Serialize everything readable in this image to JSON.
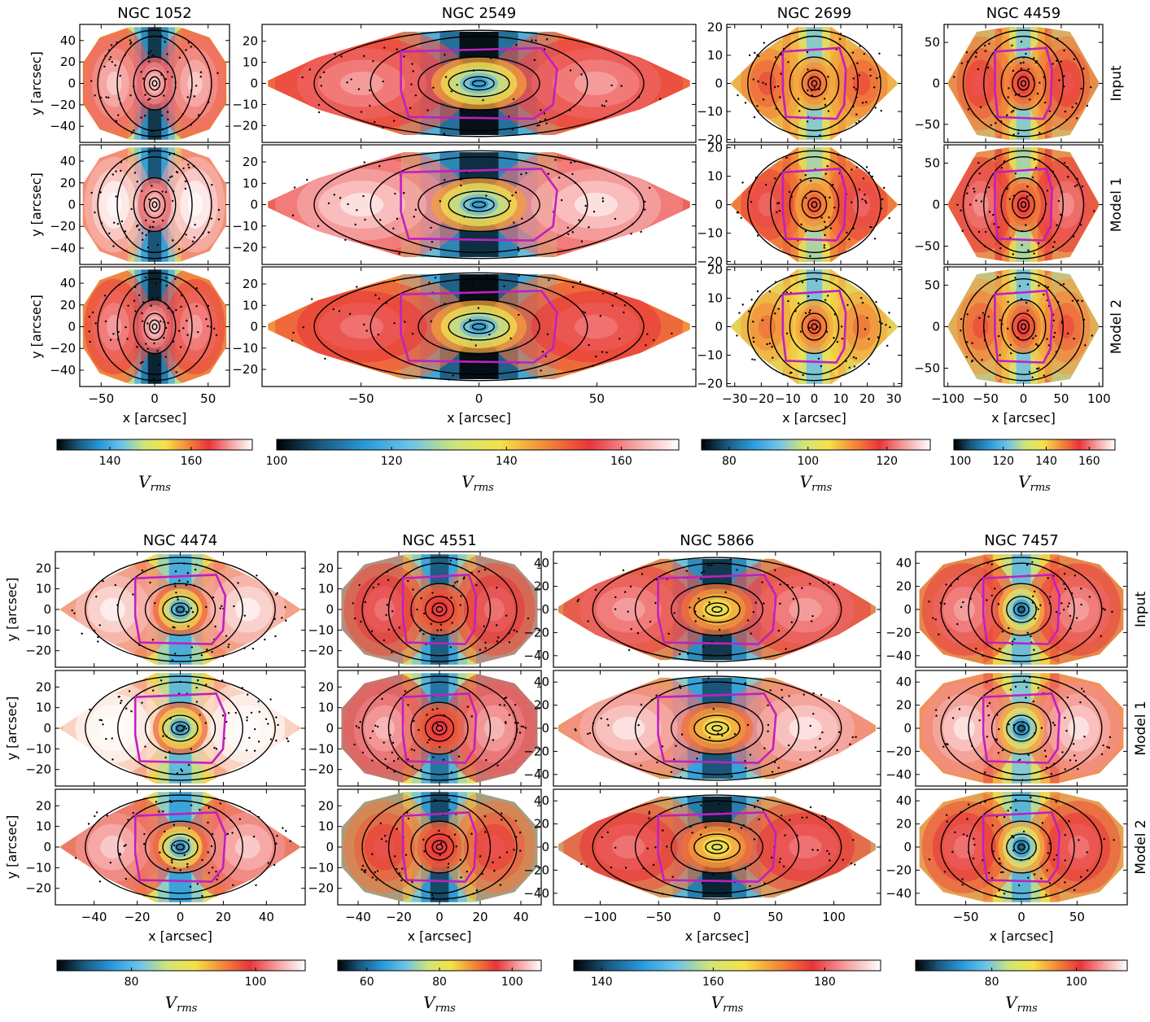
{
  "colors": {
    "contour": "#000000",
    "aperture": "#c020c0",
    "bin_dot": "#000000",
    "colormap": [
      "#000000",
      "#1a5a80",
      "#2a9adb",
      "#6fc3e8",
      "#cfe57a",
      "#f5e24a",
      "#f38a3a",
      "#e8353a",
      "#f5a0a0",
      "#ffffff"
    ]
  },
  "chart_data": [
    {
      "type": "heatmap",
      "galaxy": "NGC 1052",
      "title": "NGC 1052",
      "xlabel": "x [arcsec]",
      "ylabel": "y [arcsec]",
      "xlim": [
        -70,
        70
      ],
      "ylim": [
        -55,
        55
      ],
      "xticks": [
        -50,
        0,
        50
      ],
      "yticks": [
        40,
        20,
        0,
        -20,
        -40
      ],
      "rows": [
        "Input",
        "Model 1",
        "Model 2"
      ],
      "colorbar": {
        "label": "V_rms",
        "range": [
          127,
          175
        ],
        "ticks": [
          140,
          160
        ]
      },
      "aperture": false
    },
    {
      "type": "heatmap",
      "galaxy": "NGC 2549",
      "title": "NGC 2549",
      "xlabel": "x [arcsec]",
      "ylabel": "",
      "xlim": [
        -92,
        92
      ],
      "ylim": [
        -28,
        28
      ],
      "xticks": [
        -50,
        0,
        50
      ],
      "yticks": [
        20,
        10,
        0,
        -10,
        -20
      ],
      "rows": [
        "Input",
        "Model 1",
        "Model 2"
      ],
      "colorbar": {
        "label": "V_rms",
        "range": [
          100,
          170
        ],
        "ticks": [
          100,
          120,
          140,
          160
        ]
      },
      "aperture": true
    },
    {
      "type": "heatmap",
      "galaxy": "NGC 2699",
      "title": "NGC 2699",
      "xlabel": "x [arcsec]",
      "ylabel": "",
      "xlim": [
        -33,
        33
      ],
      "ylim": [
        -21,
        21
      ],
      "xticks": [
        -30,
        -20,
        -10,
        0,
        10,
        20,
        30
      ],
      "yticks": [
        20,
        10,
        0,
        -10,
        -20
      ],
      "rows": [
        "Input",
        "Model 1",
        "Model 2"
      ],
      "colorbar": {
        "label": "V_rms",
        "range": [
          73,
          131
        ],
        "ticks": [
          80,
          100,
          120
        ]
      },
      "aperture": true
    },
    {
      "type": "heatmap",
      "galaxy": "NGC 4459",
      "title": "NGC 4459",
      "xlabel": "x [arcsec]",
      "ylabel": "",
      "xlim": [
        -105,
        105
      ],
      "ylim": [
        -72,
        72
      ],
      "xticks": [
        -100,
        -50,
        0,
        50,
        100
      ],
      "yticks": [
        50,
        0,
        -50
      ],
      "rows": [
        "Input",
        "Model 1",
        "Model 2"
      ],
      "colorbar": {
        "label": "V_rms",
        "range": [
          97,
          172
        ],
        "ticks": [
          100,
          120,
          140,
          160
        ]
      },
      "aperture": true
    },
    {
      "type": "heatmap",
      "galaxy": "NGC 4474",
      "title": "NGC 4474",
      "xlabel": "x [arcsec]",
      "ylabel": "y [arcsec]",
      "xlim": [
        -58,
        58
      ],
      "ylim": [
        -28,
        28
      ],
      "xticks": [
        -40,
        -20,
        0,
        20,
        40
      ],
      "yticks": [
        20,
        10,
        0,
        -10,
        -20
      ],
      "rows": [
        "Input",
        "Model 1",
        "Model 2"
      ],
      "colorbar": {
        "label": "V_rms",
        "range": [
          68,
          108
        ],
        "ticks": [
          80,
          100
        ]
      },
      "aperture": true
    },
    {
      "type": "heatmap",
      "galaxy": "NGC 4551",
      "title": "NGC 4551",
      "xlabel": "x [arcsec]",
      "ylabel": "",
      "xlim": [
        -50,
        50
      ],
      "ylim": [
        -28,
        28
      ],
      "xticks": [
        -40,
        -20,
        0,
        20,
        40
      ],
      "yticks": [
        20,
        10,
        0,
        -10,
        -20
      ],
      "rows": [
        "Input",
        "Model 1",
        "Model 2"
      ],
      "colorbar": {
        "label": "V_rms",
        "range": [
          52,
          108
        ],
        "ticks": [
          60,
          80,
          100
        ]
      },
      "aperture": true
    },
    {
      "type": "heatmap",
      "galaxy": "NGC 5866",
      "title": "NGC 5866",
      "xlabel": "x [arcsec]",
      "ylabel": "",
      "xlim": [
        -140,
        140
      ],
      "ylim": [
        -50,
        50
      ],
      "xticks": [
        -100,
        -50,
        0,
        50,
        100
      ],
      "yticks": [
        40,
        20,
        0,
        -20,
        -40
      ],
      "rows": [
        "Input",
        "Model 1",
        "Model 2"
      ],
      "colorbar": {
        "label": "V_rms",
        "range": [
          135,
          190
        ],
        "ticks": [
          140,
          160,
          180
        ]
      },
      "aperture": true
    },
    {
      "type": "heatmap",
      "galaxy": "NGC 7457",
      "title": "NGC 7457",
      "xlabel": "x [arcsec]",
      "ylabel": "",
      "xlim": [
        -95,
        95
      ],
      "ylim": [
        -50,
        50
      ],
      "xticks": [
        -50,
        0,
        50
      ],
      "yticks": [
        40,
        20,
        0,
        -20,
        -40
      ],
      "rows": [
        "Input",
        "Model 1",
        "Model 2"
      ],
      "colorbar": {
        "label": "V_rms",
        "range": [
          62,
          112
        ],
        "ticks": [
          80,
          100
        ]
      },
      "aperture": true
    }
  ]
}
